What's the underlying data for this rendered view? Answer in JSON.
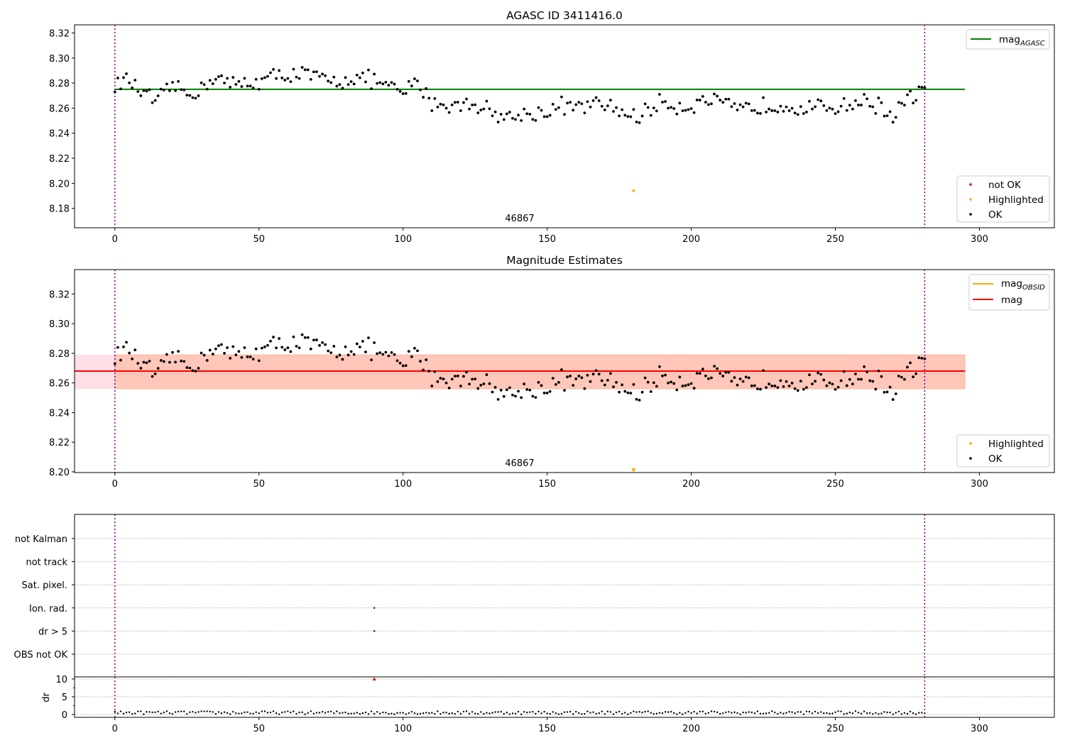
{
  "chart_data": [
    {
      "type": "scatter",
      "title": "AGASC ID 3411416.0",
      "xlim": [
        -14,
        326
      ],
      "ylim": [
        8.1645,
        8.3265
      ],
      "xticks": [
        0,
        50,
        100,
        150,
        200,
        250,
        300
      ],
      "yticks": [
        8.18,
        8.2,
        8.22,
        8.24,
        8.26,
        8.28,
        8.3,
        8.32
      ],
      "vlines": [
        0,
        281
      ],
      "hline": {
        "name": "mag_AGASC",
        "value": 8.275,
        "x_range": [
          0,
          295
        ],
        "color": "#008000"
      },
      "annotation": {
        "text": "46867",
        "x": 140,
        "y": 8.169
      },
      "highlighted_points": [
        {
          "x": 180,
          "y": 8.194
        }
      ],
      "ok_series": {
        "anchors": [
          [
            0,
            8.279
          ],
          [
            5,
            8.282
          ],
          [
            10,
            8.27
          ],
          [
            15,
            8.265
          ],
          [
            20,
            8.278
          ],
          [
            25,
            8.272
          ],
          [
            30,
            8.275
          ],
          [
            35,
            8.286
          ],
          [
            40,
            8.278
          ],
          [
            45,
            8.28
          ],
          [
            50,
            8.281
          ],
          [
            55,
            8.285
          ],
          [
            60,
            8.287
          ],
          [
            65,
            8.287
          ],
          [
            70,
            8.284
          ],
          [
            75,
            8.281
          ],
          [
            80,
            8.283
          ],
          [
            85,
            8.284
          ],
          [
            90,
            8.282
          ],
          [
            95,
            8.276
          ],
          [
            100,
            8.272
          ],
          [
            105,
            8.281
          ],
          [
            110,
            8.265
          ],
          [
            115,
            8.262
          ],
          [
            120,
            8.262
          ],
          [
            125,
            8.265
          ],
          [
            130,
            8.258
          ],
          [
            135,
            8.252
          ],
          [
            140,
            8.254
          ],
          [
            145,
            8.256
          ],
          [
            150,
            8.257
          ],
          [
            155,
            8.262
          ],
          [
            160,
            8.26
          ],
          [
            165,
            8.262
          ],
          [
            170,
            8.262
          ],
          [
            175,
            8.258
          ],
          [
            180,
            8.253
          ],
          [
            185,
            8.258
          ],
          [
            190,
            8.265
          ],
          [
            195,
            8.262
          ],
          [
            200,
            8.262
          ],
          [
            205,
            8.266
          ],
          [
            210,
            8.264
          ],
          [
            215,
            8.258
          ],
          [
            220,
            8.259
          ],
          [
            225,
            8.262
          ],
          [
            230,
            8.263
          ],
          [
            235,
            8.262
          ],
          [
            240,
            8.26
          ],
          [
            245,
            8.26
          ],
          [
            250,
            8.262
          ],
          [
            255,
            8.263
          ],
          [
            260,
            8.266
          ],
          [
            265,
            8.262
          ],
          [
            270,
            8.254
          ],
          [
            275,
            8.266
          ],
          [
            281,
            8.276
          ]
        ],
        "spread": 0.008
      },
      "legends": [
        {
          "position": "upper right",
          "entries": [
            {
              "label": "mag",
              "subscript": "AGASC",
              "color": "#008000",
              "marker": "line"
            }
          ]
        },
        {
          "position": "lower right",
          "entries": [
            {
              "label": "not OK",
              "color": "#ff0000",
              "marker": "dot"
            },
            {
              "label": "Highlighted",
              "color": "#ffa500",
              "marker": "dot"
            },
            {
              "label": "OK",
              "color": "#000000",
              "marker": "dot"
            }
          ]
        }
      ]
    },
    {
      "type": "scatter",
      "title": "Magnitude Estimates",
      "xlim": [
        -14,
        326
      ],
      "ylim": [
        8.1995,
        8.3365
      ],
      "xticks": [
        0,
        50,
        100,
        150,
        200,
        250,
        300
      ],
      "yticks": [
        8.2,
        8.22,
        8.24,
        8.26,
        8.28,
        8.3,
        8.32
      ],
      "vlines": [
        0,
        281
      ],
      "bands": [
        {
          "y": [
            8.256,
            8.279
          ],
          "x_range": [
            -14,
            295
          ],
          "color": "#ffc0cb",
          "opacity": 0.5
        },
        {
          "y": [
            8.256,
            8.279
          ],
          "x_range": [
            0,
            295
          ],
          "color": "#ffa07a",
          "opacity": 0.4
        }
      ],
      "lines": [
        {
          "name": "mag_OBSID",
          "value": 8.268,
          "x_range": [
            0,
            281
          ],
          "color": "#ffa500"
        },
        {
          "name": "mag",
          "value": 8.268,
          "x_range": [
            -14,
            295
          ],
          "color": "#ff0000"
        }
      ],
      "annotation": {
        "text": "46867",
        "x": 140,
        "y": 8.203
      },
      "highlighted_points": [
        {
          "x": 180,
          "y": 8.201,
          "marker": "triangle-down"
        }
      ],
      "legends": [
        {
          "position": "upper right",
          "entries": [
            {
              "label": "mag",
              "subscript": "OBSID",
              "color": "#ffa500",
              "marker": "line"
            },
            {
              "label": "mag",
              "subscript": "",
              "color": "#ff0000",
              "marker": "line"
            }
          ]
        },
        {
          "position": "lower right",
          "entries": [
            {
              "label": "Highlighted",
              "color": "#ffa500",
              "marker": "dot"
            },
            {
              "label": "OK",
              "color": "#000000",
              "marker": "dot"
            }
          ]
        }
      ]
    },
    {
      "type": "scatter",
      "title": "",
      "xlim": [
        -14,
        326
      ],
      "xticks": [
        0,
        50,
        100,
        150,
        200,
        250,
        300
      ],
      "vlines": [
        0,
        281
      ],
      "flag_rows": [
        "not Kalman",
        "not track",
        "Sat. pixel.",
        "Ion. rad.",
        "dr > 5",
        "OBS not OK"
      ],
      "flag_points": [
        {
          "flag": "Ion. rad.",
          "x": 90
        },
        {
          "flag": "dr > 5",
          "x": 90
        }
      ]
    },
    {
      "type": "scatter",
      "title": "",
      "ylabel": "dr",
      "xlim": [
        -14,
        326
      ],
      "ylim": [
        -0.8,
        10.6
      ],
      "xticks": [
        0,
        50,
        100,
        150,
        200,
        250,
        300
      ],
      "yticks": [
        0,
        5,
        10
      ],
      "vlines": [
        0,
        281
      ],
      "dr_typical": 0.5,
      "outliers": [
        {
          "x": 90,
          "y": 10,
          "color": "#ff0000",
          "marker": "triangle-up"
        }
      ]
    }
  ]
}
